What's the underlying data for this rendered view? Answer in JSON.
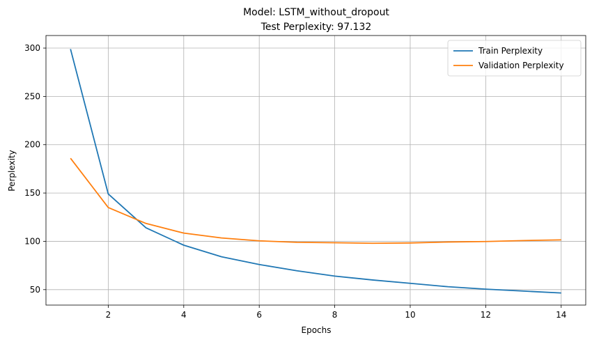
{
  "chart_data": {
    "type": "line",
    "title_line1": "Model: LSTM_without_dropout",
    "title_line2": "Test Perplexity: 97.132",
    "xlabel": "Epochs",
    "ylabel": "Perplexity",
    "xlim": [
      0.35,
      14.65
    ],
    "ylim": [
      34,
      313
    ],
    "xticks": [
      2,
      4,
      6,
      8,
      10,
      12,
      14
    ],
    "yticks": [
      50,
      100,
      150,
      200,
      250,
      300
    ],
    "grid": true,
    "legend_position": "top-right",
    "x": [
      1,
      2,
      3,
      4,
      5,
      6,
      7,
      8,
      9,
      10,
      11,
      12,
      13,
      14
    ],
    "series": [
      {
        "name": "Train Perplexity",
        "color": "#1f77b4",
        "values": [
          299,
          149,
          114,
          96,
          84,
          76,
          69.5,
          64,
          60,
          56.5,
          53,
          50.5,
          48.5,
          46.5
        ]
      },
      {
        "name": "Validation Perplexity",
        "color": "#ff7f0e",
        "values": [
          186,
          135,
          118.5,
          108.5,
          103.5,
          100.5,
          99,
          98.5,
          98,
          98.3,
          99.3,
          99.8,
          100.8,
          101.5
        ]
      }
    ]
  }
}
